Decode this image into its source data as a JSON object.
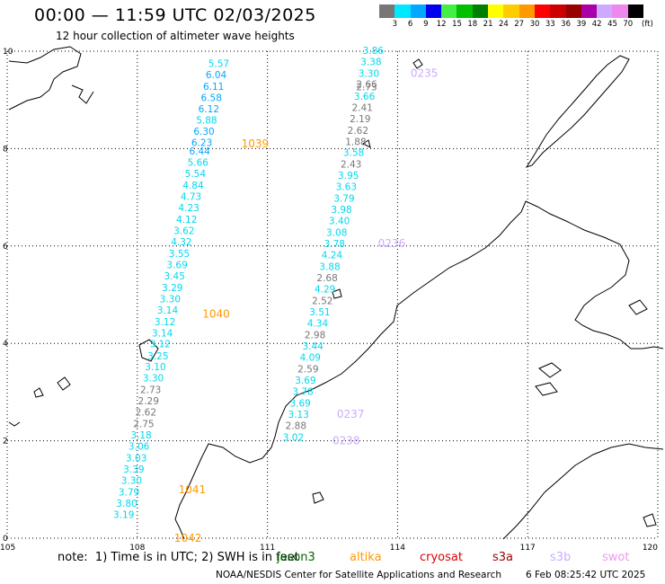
{
  "header": {
    "title": "00:00 — 11:59 UTC 02/03/2025",
    "subtitle": "12 hour collection of altimeter wave heights"
  },
  "legend": {
    "colors": [
      "#777777",
      "#00e8ff",
      "#00a8ff",
      "#0000ee",
      "#44ee44",
      "#00c000",
      "#008000",
      "#ffff00",
      "#ffcc00",
      "#ff9900",
      "#ff0000",
      "#cc0000",
      "#990000",
      "#aa00aa",
      "#ccaaff",
      "#ee88ee",
      "#000000"
    ],
    "labels": [
      "3",
      "6",
      "9",
      "12",
      "15",
      "18",
      "21",
      "24",
      "27",
      "30",
      "33",
      "36",
      "39",
      "42",
      "45",
      "70"
    ],
    "unit": "(ft)"
  },
  "map": {
    "x_axis": {
      "ticks": [
        "105",
        "108",
        "111",
        "114",
        "117",
        "120"
      ],
      "range": [
        105,
        120
      ]
    },
    "y_axis": {
      "ticks": [
        "0",
        "2",
        "4",
        "6",
        "8",
        "10"
      ],
      "range": [
        0,
        10
      ]
    },
    "tracks": [
      {
        "label": "1039",
        "label_lon": 110.4,
        "label_lat": 8.1,
        "label_color": "#ff9900",
        "points": [
          {
            "lon": 110.12,
            "lat": 9.75,
            "v": "5.57"
          },
          {
            "lon": 110.06,
            "lat": 9.52,
            "v": "6.04"
          },
          {
            "lon": 110.0,
            "lat": 9.28,
            "v": "6.11"
          },
          {
            "lon": 109.95,
            "lat": 9.05,
            "v": "6.58"
          },
          {
            "lon": 109.89,
            "lat": 8.82,
            "v": "6.12"
          },
          {
            "lon": 109.84,
            "lat": 8.59,
            "v": "5.88"
          },
          {
            "lon": 109.78,
            "lat": 8.36,
            "v": "6.30"
          },
          {
            "lon": 109.73,
            "lat": 8.13,
            "v": "6.23"
          },
          {
            "lon": 109.68,
            "lat": 7.95,
            "v": "6.44"
          },
          {
            "lon": 109.64,
            "lat": 7.72,
            "v": "5.66"
          },
          {
            "lon": 109.58,
            "lat": 7.49,
            "v": "5.54"
          },
          {
            "lon": 109.53,
            "lat": 7.25,
            "v": "4.84"
          },
          {
            "lon": 109.48,
            "lat": 7.02,
            "v": "4.73"
          },
          {
            "lon": 109.43,
            "lat": 6.79,
            "v": "4.23"
          },
          {
            "lon": 109.38,
            "lat": 6.55,
            "v": "4.12"
          },
          {
            "lon": 109.32,
            "lat": 6.32,
            "v": "3.62"
          },
          {
            "lon": 109.26,
            "lat": 6.09,
            "v": "4.32"
          },
          {
            "lon": 109.21,
            "lat": 5.85,
            "v": "3.55"
          },
          {
            "lon": 109.16,
            "lat": 5.62,
            "v": "3.69"
          },
          {
            "lon": 109.1,
            "lat": 5.39,
            "v": "3.45"
          },
          {
            "lon": 109.05,
            "lat": 5.15,
            "v": "3.29"
          },
          {
            "lon": 109.0,
            "lat": 4.92,
            "v": "3.30"
          },
          {
            "lon": 108.94,
            "lat": 4.69,
            "v": "3.14"
          },
          {
            "lon": 108.88,
            "lat": 4.45,
            "v": "3.12"
          },
          {
            "lon": 108.82,
            "lat": 4.22,
            "v": "3.14"
          },
          {
            "lon": 108.77,
            "lat": 3.99,
            "v": "3.12"
          },
          {
            "lon": 108.72,
            "lat": 3.75,
            "v": "3.25"
          },
          {
            "lon": 108.66,
            "lat": 3.52,
            "v": "3.10"
          },
          {
            "lon": 108.61,
            "lat": 3.29,
            "v": "3.30"
          },
          {
            "lon": 108.55,
            "lat": 3.05,
            "v": "2.73"
          },
          {
            "lon": 108.5,
            "lat": 2.82,
            "v": "2.29"
          },
          {
            "lon": 108.44,
            "lat": 2.59,
            "v": "2.62"
          },
          {
            "lon": 108.39,
            "lat": 2.35,
            "v": "2.75"
          },
          {
            "lon": 108.33,
            "lat": 2.12,
            "v": "3.18"
          },
          {
            "lon": 108.28,
            "lat": 1.89,
            "v": "3.06"
          },
          {
            "lon": 108.22,
            "lat": 1.65,
            "v": "3.03"
          },
          {
            "lon": 108.16,
            "lat": 1.42,
            "v": "3.39"
          },
          {
            "lon": 108.11,
            "lat": 1.19,
            "v": "3.30"
          },
          {
            "lon": 108.05,
            "lat": 0.95,
            "v": "3.79"
          },
          {
            "lon": 108.0,
            "lat": 0.72,
            "v": "3.80"
          },
          {
            "lon": 107.93,
            "lat": 0.49,
            "v": "3.19"
          }
        ]
      },
      {
        "label": "1040",
        "label_lon": 109.5,
        "label_lat": 4.6,
        "label_color": "#ff9900",
        "points": []
      },
      {
        "label": "1041",
        "label_lon": 108.95,
        "label_lat": 1.0,
        "label_color": "#ff9900",
        "points": []
      },
      {
        "label": "1042",
        "label_lon": 108.85,
        "label_lat": 0.0,
        "label_color": "#ff9900",
        "points": []
      },
      {
        "label": "0235",
        "label_lon": 114.3,
        "label_lat": 9.55,
        "label_color": "#ccaaff",
        "points": [
          {
            "lon": 113.68,
            "lat": 10.02,
            "v": "3.86"
          },
          {
            "lon": 113.63,
            "lat": 9.79,
            "v": "3.38"
          },
          {
            "lon": 113.58,
            "lat": 9.55,
            "v": "3.30"
          },
          {
            "lon": 113.53,
            "lat": 9.33,
            "v": "2.66"
          },
          {
            "lon": 113.53,
            "lat": 9.27,
            "v": "2.73"
          },
          {
            "lon": 113.48,
            "lat": 9.08,
            "v": "3.66"
          },
          {
            "lon": 113.43,
            "lat": 8.85,
            "v": "2.41"
          },
          {
            "lon": 113.38,
            "lat": 8.62,
            "v": "2.19"
          },
          {
            "lon": 113.33,
            "lat": 8.38,
            "v": "2.62"
          },
          {
            "lon": 113.28,
            "lat": 8.15,
            "v": "1.88"
          },
          {
            "lon": 113.23,
            "lat": 7.92,
            "v": "3.58"
          },
          {
            "lon": 113.17,
            "lat": 7.68,
            "v": "2.43"
          },
          {
            "lon": 113.11,
            "lat": 7.45,
            "v": "3.95"
          },
          {
            "lon": 113.06,
            "lat": 7.22,
            "v": "3.63"
          },
          {
            "lon": 113.01,
            "lat": 6.98,
            "v": "3.79"
          },
          {
            "lon": 112.95,
            "lat": 6.75,
            "v": "3.98"
          },
          {
            "lon": 112.9,
            "lat": 6.52,
            "v": "3.40"
          },
          {
            "lon": 112.84,
            "lat": 6.28,
            "v": "3.08"
          }
        ]
      },
      {
        "label": "0236",
        "label_lon": 113.55,
        "label_lat": 6.05,
        "label_color": "#ccaaff",
        "points": [
          {
            "lon": 112.79,
            "lat": 6.05,
            "v": "3.78"
          },
          {
            "lon": 112.73,
            "lat": 5.82,
            "v": "4.24"
          },
          {
            "lon": 112.68,
            "lat": 5.58,
            "v": "3.88"
          },
          {
            "lon": 112.62,
            "lat": 5.35,
            "v": "2.68"
          },
          {
            "lon": 112.57,
            "lat": 5.12,
            "v": "4.29"
          },
          {
            "lon": 112.51,
            "lat": 4.88,
            "v": "2.52"
          },
          {
            "lon": 112.45,
            "lat": 4.65,
            "v": "3.51"
          },
          {
            "lon": 112.4,
            "lat": 4.42,
            "v": "4.34"
          },
          {
            "lon": 112.34,
            "lat": 4.18,
            "v": "2.98"
          },
          {
            "lon": 112.29,
            "lat": 3.95,
            "v": "3.44"
          },
          {
            "lon": 112.23,
            "lat": 3.72,
            "v": "4.09"
          },
          {
            "lon": 112.18,
            "lat": 3.48,
            "v": "2.59"
          },
          {
            "lon": 112.12,
            "lat": 3.25,
            "v": "3.69"
          },
          {
            "lon": 112.06,
            "lat": 3.02,
            "v": "3.78"
          }
        ]
      },
      {
        "label": "0237",
        "label_lon": 112.6,
        "label_lat": 2.55,
        "label_color": "#ccaaff",
        "points": [
          {
            "lon": 112.0,
            "lat": 2.78,
            "v": "3.69"
          },
          {
            "lon": 111.96,
            "lat": 2.55,
            "v": "3.13"
          }
        ]
      },
      {
        "label": "0238",
        "label_lon": 112.5,
        "label_lat": 2.0,
        "label_color": "#ccaaff",
        "points": [
          {
            "lon": 111.9,
            "lat": 2.32,
            "v": "2.88"
          },
          {
            "lon": 111.84,
            "lat": 2.08,
            "v": "3.02"
          }
        ]
      }
    ]
  },
  "footer": {
    "note": "note:  1) Time is in UTC; 2) SWH is in feet",
    "satellites": [
      {
        "name": "jason3",
        "color": "#006600"
      },
      {
        "name": "altika",
        "color": "#ff9900"
      },
      {
        "name": "cryosat",
        "color": "#dd0000"
      },
      {
        "name": "s3a",
        "color": "#990000"
      },
      {
        "name": "s3b",
        "color": "#ccaaff"
      },
      {
        "name": "swot",
        "color": "#ee99ee"
      }
    ],
    "credit": "NOAA/NESDIS Center for Satellite Applications and Research",
    "timestamp": "6 Feb 08:25:42 UTC 2025"
  }
}
